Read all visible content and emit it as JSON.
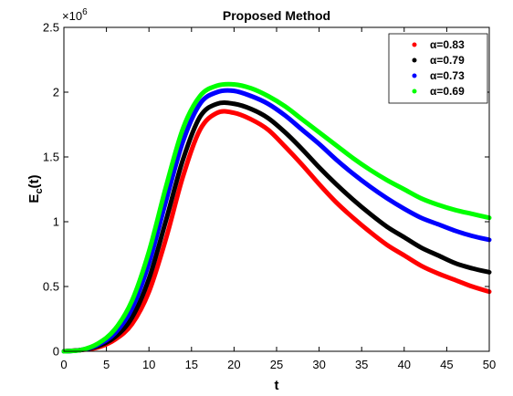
{
  "chart_data": {
    "type": "line",
    "title": "Proposed Method",
    "xlabel": "t",
    "ylabel": "E_c(t)",
    "ylabel_main": "E",
    "ylabel_sub": "c",
    "ylabel_rest": "(t)",
    "y_multiplier_base": "×10",
    "y_multiplier_exp": "6",
    "xlim": [
      0,
      50
    ],
    "ylim": [
      0,
      2.5
    ],
    "x_ticks": [
      "0",
      "5",
      "10",
      "15",
      "20",
      "25",
      "30",
      "35",
      "40",
      "45",
      "50"
    ],
    "y_ticks": [
      "0",
      "0.5",
      "1",
      "1.5",
      "2",
      "2.5"
    ],
    "grid": false,
    "legend_position": "top-right",
    "x": [
      0,
      2,
      4,
      6,
      8,
      10,
      12,
      14,
      16,
      18,
      20,
      22,
      24,
      26,
      28,
      30,
      32,
      34,
      36,
      38,
      40,
      42,
      44,
      46,
      48,
      50
    ],
    "series": [
      {
        "name": "α=0.83",
        "color": "#ff0000",
        "values": [
          0.0,
          0.01,
          0.03,
          0.09,
          0.21,
          0.46,
          0.87,
          1.35,
          1.71,
          1.84,
          1.84,
          1.79,
          1.71,
          1.58,
          1.44,
          1.29,
          1.15,
          1.03,
          0.92,
          0.82,
          0.74,
          0.66,
          0.6,
          0.55,
          0.5,
          0.46
        ]
      },
      {
        "name": "α=0.79",
        "color": "#000000",
        "values": [
          0.0,
          0.01,
          0.04,
          0.11,
          0.26,
          0.56,
          1.01,
          1.48,
          1.81,
          1.91,
          1.91,
          1.87,
          1.8,
          1.69,
          1.56,
          1.42,
          1.29,
          1.17,
          1.06,
          0.96,
          0.88,
          0.8,
          0.74,
          0.68,
          0.64,
          0.61
        ]
      },
      {
        "name": "α=0.73",
        "color": "#0000ff",
        "values": [
          0.0,
          0.01,
          0.05,
          0.14,
          0.33,
          0.68,
          1.16,
          1.62,
          1.91,
          2.0,
          2.01,
          1.97,
          1.91,
          1.82,
          1.71,
          1.6,
          1.48,
          1.37,
          1.27,
          1.18,
          1.1,
          1.03,
          0.98,
          0.93,
          0.89,
          0.86
        ]
      },
      {
        "name": "α=0.69",
        "color": "#00ff00",
        "values": [
          0.0,
          0.01,
          0.06,
          0.17,
          0.39,
          0.77,
          1.27,
          1.72,
          1.97,
          2.05,
          2.06,
          2.03,
          1.97,
          1.89,
          1.79,
          1.69,
          1.59,
          1.49,
          1.4,
          1.32,
          1.25,
          1.18,
          1.13,
          1.09,
          1.06,
          1.03
        ]
      }
    ]
  }
}
